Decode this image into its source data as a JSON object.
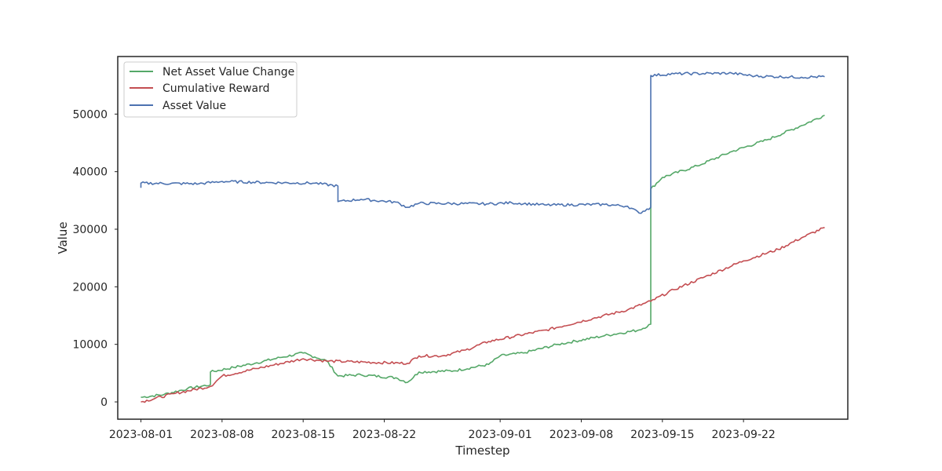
{
  "chart_data": {
    "type": "line",
    "xlabel": "Timestep",
    "ylabel": "Value",
    "x_tick_labels": [
      "2023-08-01",
      "2023-08-08",
      "2023-08-15",
      "2023-08-22",
      "2023-09-01",
      "2023-09-08",
      "2023-09-15",
      "2023-09-22"
    ],
    "x_ticks": [
      "2023-08-01",
      "2023-08-08",
      "2023-08-15",
      "2023-08-22",
      "2023-09-01",
      "2023-09-08",
      "2023-09-15",
      "2023-09-22"
    ],
    "y_ticks": [
      0,
      10000,
      20000,
      30000,
      40000,
      50000
    ],
    "xlim": [
      "2023-07-30",
      "2023-10-01"
    ],
    "ylim": [
      -3000,
      60000
    ],
    "grid": false,
    "legend_position": "top-left",
    "series": [
      {
        "name": "Net Asset Value Change",
        "color": "#55a868",
        "points": [
          [
            "2023-08-01",
            800
          ],
          [
            "2023-08-03",
            1300
          ],
          [
            "2023-08-05",
            2300
          ],
          [
            "2023-08-07",
            3000
          ],
          [
            "2023-08-07",
            5200
          ],
          [
            "2023-08-09",
            6000
          ],
          [
            "2023-08-11",
            6800
          ],
          [
            "2023-08-13",
            7700
          ],
          [
            "2023-08-15",
            8500
          ],
          [
            "2023-08-16",
            7800
          ],
          [
            "2023-08-17",
            7200
          ],
          [
            "2023-08-18",
            4500
          ],
          [
            "2023-08-20",
            4700
          ],
          [
            "2023-08-23",
            4200
          ],
          [
            "2023-08-24",
            3400
          ],
          [
            "2023-08-25",
            5200
          ],
          [
            "2023-08-28",
            5400
          ],
          [
            "2023-08-31",
            6500
          ],
          [
            "2023-09-01",
            8000
          ],
          [
            "2023-09-03",
            8500
          ],
          [
            "2023-09-06",
            10000
          ],
          [
            "2023-09-10",
            11500
          ],
          [
            "2023-09-13",
            12500
          ],
          [
            "2023-09-14",
            13500
          ],
          [
            "2023-09-14",
            37000
          ],
          [
            "2023-09-15",
            39000
          ],
          [
            "2023-09-18",
            41000
          ],
          [
            "2023-09-21",
            43500
          ],
          [
            "2023-09-24",
            45500
          ],
          [
            "2023-09-27",
            48000
          ],
          [
            "2023-09-29",
            49800
          ]
        ]
      },
      {
        "name": "Cumulative Reward",
        "color": "#c44e52",
        "points": [
          [
            "2023-08-01",
            0
          ],
          [
            "2023-08-04",
            1500
          ],
          [
            "2023-08-07",
            2700
          ],
          [
            "2023-08-08",
            4500
          ],
          [
            "2023-08-11",
            5800
          ],
          [
            "2023-08-15",
            7500
          ],
          [
            "2023-08-17",
            7100
          ],
          [
            "2023-08-24",
            6700
          ],
          [
            "2023-08-25",
            8000
          ],
          [
            "2023-08-27",
            8000
          ],
          [
            "2023-08-29",
            9000
          ],
          [
            "2023-08-31",
            10500
          ],
          [
            "2023-09-05",
            12500
          ],
          [
            "2023-09-09",
            14500
          ],
          [
            "2023-09-12",
            16000
          ],
          [
            "2023-09-14",
            17500
          ],
          [
            "2023-09-16",
            19500
          ],
          [
            "2023-09-19",
            22000
          ],
          [
            "2023-09-22",
            24500
          ],
          [
            "2023-09-25",
            26500
          ],
          [
            "2023-09-27",
            28500
          ],
          [
            "2023-09-29",
            30300
          ]
        ]
      },
      {
        "name": "Asset Value",
        "color": "#4c72b0",
        "points": [
          [
            "2023-08-01",
            37200
          ],
          [
            "2023-08-01",
            38000
          ],
          [
            "2023-08-06",
            37900
          ],
          [
            "2023-08-08",
            38300
          ],
          [
            "2023-08-12",
            38100
          ],
          [
            "2023-08-16",
            38000
          ],
          [
            "2023-08-18",
            37500
          ],
          [
            "2023-08-18",
            34800
          ],
          [
            "2023-08-20",
            35200
          ],
          [
            "2023-08-23",
            34700
          ],
          [
            "2023-08-24",
            33800
          ],
          [
            "2023-08-25",
            34500
          ],
          [
            "2023-08-31",
            34400
          ],
          [
            "2023-09-02",
            34600
          ],
          [
            "2023-09-05",
            34200
          ],
          [
            "2023-09-10",
            34300
          ],
          [
            "2023-09-12",
            34000
          ],
          [
            "2023-09-13",
            32800
          ],
          [
            "2023-09-14",
            33800
          ],
          [
            "2023-09-14",
            56700
          ],
          [
            "2023-09-16",
            57000
          ],
          [
            "2023-09-21",
            57100
          ],
          [
            "2023-09-23",
            56600
          ],
          [
            "2023-09-27",
            56400
          ],
          [
            "2023-09-29",
            56500
          ]
        ]
      }
    ]
  }
}
